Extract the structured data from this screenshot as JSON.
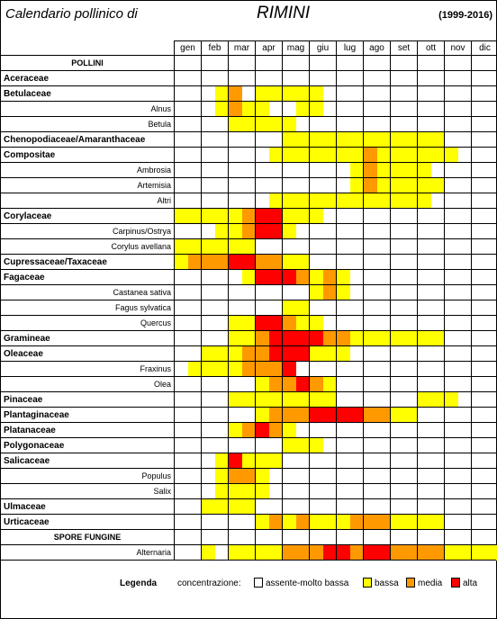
{
  "header": {
    "title": "Calendario pollinico di",
    "city": "RIMINI",
    "years": "(1999-2016)"
  },
  "months": [
    "gen",
    "feb",
    "mar",
    "apr",
    "mag",
    "giu",
    "lug",
    "ago",
    "set",
    "ott",
    "nov",
    "dic"
  ],
  "colors": {
    "none": "#ffffff",
    "bassa": "#ffff00",
    "media": "#ff9900",
    "alta": "#ff0000"
  },
  "sections": {
    "pollini": "POLLINI",
    "spore": "SPORE FUNGINE"
  },
  "rows": [
    {
      "label": "Aceraceae",
      "kind": "family",
      "levels": [
        "",
        "",
        "bb",
        "bb",
        "",
        "",
        "",
        "",
        "",
        "",
        "",
        ""
      ]
    },
    {
      "label": "Betulaceae",
      "kind": "family",
      "levels": [
        "",
        "by",
        "mb",
        "yy",
        "yy",
        "y",
        "",
        "",
        "",
        "",
        "",
        ""
      ]
    },
    {
      "label": "Alnus",
      "kind": "species",
      "levels": [
        "",
        "by",
        "my",
        "yb",
        "by",
        "y",
        "",
        "",
        "",
        "",
        "",
        ""
      ]
    },
    {
      "label": "Betula",
      "kind": "species",
      "levels": [
        "",
        "",
        "yy",
        "yy",
        "y",
        "",
        "",
        "",
        "",
        "",
        "",
        ""
      ]
    },
    {
      "label": "Chenopodiaceae/Amaranthaceae",
      "kind": "family",
      "levels": [
        "",
        "",
        "",
        "",
        "yy",
        "yy",
        "yy",
        "yy",
        "yy",
        "yy",
        "",
        ""
      ]
    },
    {
      "label": "Compositae",
      "kind": "family",
      "levels": [
        "",
        "",
        "",
        "by",
        "yy",
        "yy",
        "yy",
        "my",
        "yy",
        "yy",
        "y",
        ""
      ]
    },
    {
      "label": "Ambrosia",
      "kind": "species",
      "levels": [
        "",
        "",
        "",
        "",
        "",
        "",
        "by",
        "my",
        "yy",
        "yb",
        "",
        ""
      ]
    },
    {
      "label": "Artemisia",
      "kind": "species",
      "levels": [
        "",
        "",
        "",
        "",
        "",
        "",
        "by",
        "my",
        "yy",
        "yy",
        "",
        ""
      ]
    },
    {
      "label": "Altri",
      "kind": "species",
      "levels": [
        "",
        "",
        "",
        "by",
        "yy",
        "yy",
        "yy",
        "yy",
        "yy",
        "y",
        "",
        ""
      ]
    },
    {
      "label": "Corylaceae",
      "kind": "family",
      "levels": [
        "yy",
        "yy",
        "ym",
        "rr",
        "yy",
        "y",
        "",
        "",
        "",
        "",
        "",
        ""
      ]
    },
    {
      "label": "Carpinus/Ostrya",
      "kind": "species",
      "levels": [
        "",
        "by",
        "ym",
        "rr",
        "y",
        "",
        "",
        "",
        "",
        "",
        "",
        ""
      ]
    },
    {
      "label": "Corylus avellana",
      "kind": "species",
      "levels": [
        "yy",
        "yy",
        "yy",
        "",
        "",
        "",
        "",
        "",
        "",
        "",
        "",
        ""
      ]
    },
    {
      "label": "Cupressaceae/Taxaceae",
      "kind": "family",
      "levels": [
        "ym",
        "mm",
        "rr",
        "mm",
        "yy",
        "",
        "",
        "",
        "",
        "",
        "",
        ""
      ]
    },
    {
      "label": "Fagaceae",
      "kind": "family",
      "levels": [
        "",
        "",
        "by",
        "rr",
        "rm",
        "ym",
        "y",
        "",
        "",
        "",
        "",
        ""
      ]
    },
    {
      "label": "Castanea sativa",
      "kind": "species",
      "levels": [
        "",
        "",
        "",
        "",
        "",
        "ym",
        "y",
        "",
        "",
        "",
        "",
        ""
      ]
    },
    {
      "label": "Fagus sylvatica",
      "kind": "species",
      "levels": [
        "",
        "",
        "",
        "",
        "yy",
        "",
        "",
        "",
        "",
        "",
        "",
        ""
      ]
    },
    {
      "label": "Quercus",
      "kind": "species",
      "levels": [
        "",
        "",
        "yy",
        "rr",
        "my",
        "y",
        "",
        "",
        "",
        "",
        "",
        ""
      ]
    },
    {
      "label": "Gramineae",
      "kind": "family",
      "levels": [
        "",
        "",
        "yy",
        "mr",
        "rr",
        "rm",
        "my",
        "yy",
        "yy",
        "yy",
        "",
        ""
      ]
    },
    {
      "label": "Oleaceae",
      "kind": "family",
      "levels": [
        "",
        "yy",
        "ym",
        "mr",
        "rr",
        "yy",
        "y",
        "",
        "",
        "",
        "",
        ""
      ]
    },
    {
      "label": "Fraxinus",
      "kind": "species",
      "levels": [
        "by",
        "yy",
        "ym",
        "mm",
        "rb",
        "",
        "",
        "",
        "",
        "",
        "",
        ""
      ]
    },
    {
      "label": "Olea",
      "kind": "species",
      "levels": [
        "",
        "",
        "",
        "ym",
        "mr",
        "my",
        "",
        "",
        "",
        "",
        "",
        ""
      ]
    },
    {
      "label": "Pinaceae",
      "kind": "family",
      "levels": [
        "",
        "",
        "yy",
        "yy",
        "yy",
        "yy",
        "",
        "",
        "",
        "yy",
        "y",
        ""
      ]
    },
    {
      "label": "Plantaginaceae",
      "kind": "family",
      "levels": [
        "",
        "",
        "",
        "ym",
        "mm",
        "rr",
        "rr",
        "mm",
        "yy",
        "",
        "",
        ""
      ]
    },
    {
      "label": "Platanaceae",
      "kind": "family",
      "levels": [
        "",
        "",
        "ym",
        "rm",
        "y",
        "",
        "",
        "",
        "",
        "",
        "",
        ""
      ]
    },
    {
      "label": "Polygonaceae",
      "kind": "family",
      "levels": [
        "",
        "",
        "",
        "",
        "yy",
        "y",
        "",
        "",
        "",
        "",
        "",
        ""
      ]
    },
    {
      "label": "Salicaceae",
      "kind": "family",
      "levels": [
        "",
        "by",
        "ry",
        "yy",
        "",
        "",
        "",
        "",
        "",
        "",
        "",
        ""
      ]
    },
    {
      "label": "Populus",
      "kind": "species",
      "levels": [
        "",
        "by",
        "mm",
        "yb",
        "",
        "",
        "",
        "",
        "",
        "",
        "",
        ""
      ]
    },
    {
      "label": "Salix",
      "kind": "species",
      "levels": [
        "",
        "by",
        "yy",
        "yb",
        "",
        "",
        "",
        "",
        "",
        "",
        "",
        ""
      ]
    },
    {
      "label": "Ulmaceae",
      "kind": "family",
      "levels": [
        "",
        "yy",
        "yy",
        "",
        "",
        "",
        "",
        "",
        "",
        "",
        "",
        ""
      ]
    },
    {
      "label": "Urticaceae",
      "kind": "family",
      "levels": [
        "",
        "",
        "",
        "ym",
        "ym",
        "yy",
        "ym",
        "mm",
        "yy",
        "yy",
        "",
        ""
      ]
    },
    {
      "label": "Alternaria",
      "kind": "species",
      "levels": [
        "",
        "yb",
        "yy",
        "yy",
        "mm",
        "mr",
        "rm",
        "rr",
        "mm",
        "mm",
        "yy",
        "yy"
      ]
    }
  ],
  "legend": {
    "title": "Legenda",
    "concentrazione": "concentrazione:",
    "items": [
      {
        "label": "assente-molto bassa",
        "color": "#ffffff"
      },
      {
        "label": "bassa",
        "color": "#ffff00"
      },
      {
        "label": "media",
        "color": "#ff9900"
      },
      {
        "label": "alta",
        "color": "#ff0000"
      }
    ]
  }
}
